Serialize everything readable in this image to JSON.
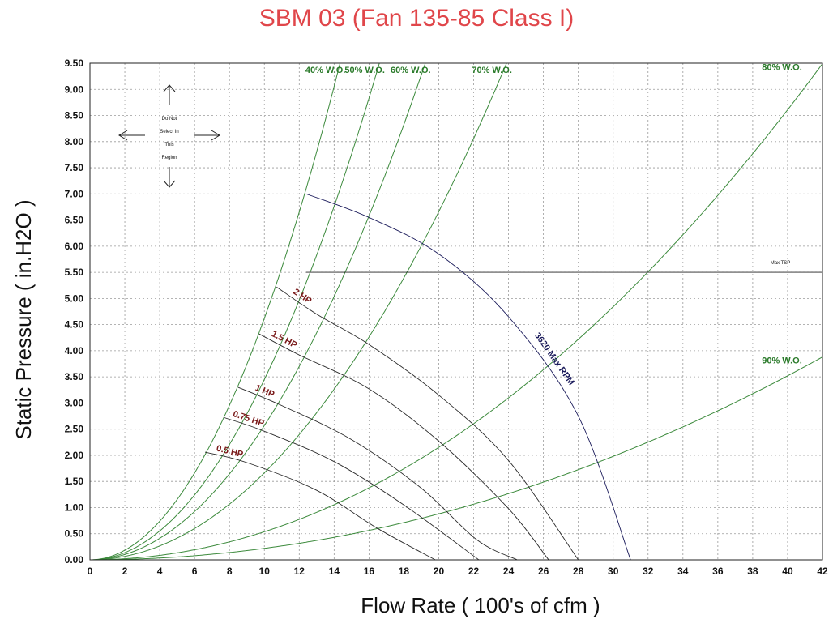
{
  "chart_data": {
    "type": "line",
    "title": "SBM 03 (Fan 135-85 Class I)",
    "xlabel": "Flow Rate ( 100's of cfm )",
    "ylabel": "Static Pressure ( in.H2O )",
    "xlim": [
      0,
      42
    ],
    "ylim": [
      0,
      9.5
    ],
    "x_ticks": [
      "0",
      "2",
      "4",
      "6",
      "8",
      "10",
      "12",
      "14",
      "16",
      "18",
      "20",
      "22",
      "24",
      "26",
      "28",
      "30",
      "32",
      "34",
      "36",
      "38",
      "40",
      "42"
    ],
    "y_ticks": [
      "0.00",
      "0.50",
      "1.00",
      "1.50",
      "2.00",
      "2.50",
      "3.00",
      "3.50",
      "4.00",
      "4.50",
      "5.00",
      "5.50",
      "6.00",
      "6.50",
      "7.00",
      "7.50",
      "8.00",
      "8.50",
      "9.00",
      "9.50"
    ],
    "grid": true,
    "system_curves": [
      {
        "name": "40% W.O.",
        "k": 0.0462
      },
      {
        "name": "50% W.O.",
        "k": 0.0345
      },
      {
        "name": "60% W.O.",
        "k": 0.0257
      },
      {
        "name": "70% W.O.",
        "k": 0.01665
      },
      {
        "name": "80% W.O.",
        "k": 0.00538
      },
      {
        "name": "90% W.O.",
        "k": 0.0022
      }
    ],
    "series": [
      {
        "name": "2 HP",
        "color": "#7a1a1a",
        "points": [
          [
            10.7,
            5.22
          ],
          [
            13,
            4.7
          ],
          [
            16,
            4.12
          ],
          [
            20,
            3.15
          ],
          [
            24,
            1.9
          ],
          [
            28,
            0
          ]
        ]
      },
      {
        "name": "1.5 HP",
        "color": "#7a1a1a",
        "points": [
          [
            9.7,
            4.32
          ],
          [
            12,
            3.92
          ],
          [
            16,
            3.27
          ],
          [
            20,
            2.27
          ],
          [
            24,
            0.98
          ],
          [
            26.3,
            0
          ]
        ]
      },
      {
        "name": "1 HP",
        "color": "#7a1a1a",
        "points": [
          [
            8.5,
            3.3
          ],
          [
            11,
            2.95
          ],
          [
            15,
            2.3
          ],
          [
            19,
            1.37
          ],
          [
            22.2,
            0.38
          ],
          [
            24.5,
            0
          ]
        ]
      },
      {
        "name": "0.75 HP",
        "color": "#7a1a1a",
        "points": [
          [
            7.7,
            2.72
          ],
          [
            10,
            2.46
          ],
          [
            14,
            1.88
          ],
          [
            18,
            1.05
          ],
          [
            22.3,
            0
          ]
        ]
      },
      {
        "name": "0.5 HP",
        "color": "#7a1a1a",
        "points": [
          [
            6.6,
            2.06
          ],
          [
            9,
            1.86
          ],
          [
            13,
            1.33
          ],
          [
            16.5,
            0.6
          ],
          [
            19.8,
            0
          ]
        ]
      },
      {
        "name": "3620 Max RPM",
        "color": "#1a1a5a",
        "points": [
          [
            12.4,
            7.0
          ],
          [
            16,
            6.55
          ],
          [
            20,
            5.85
          ],
          [
            24,
            4.65
          ],
          [
            28,
            2.75
          ],
          [
            31,
            0
          ]
        ]
      }
    ],
    "reference_lines": [
      {
        "name": "Max TSP",
        "y": 5.5
      }
    ],
    "annotations": {
      "region_note": [
        "Do Not",
        "Select In",
        "This",
        "Region"
      ]
    }
  }
}
